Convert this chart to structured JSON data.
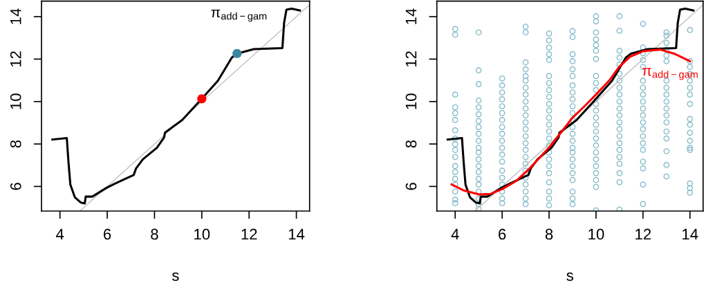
{
  "chart_data": [
    {
      "type": "line",
      "xlabel": "s",
      "xlim": [
        3.22,
        14.56
      ],
      "ylim": [
        4.84,
        14.73
      ],
      "xticks": [
        4,
        6,
        8,
        10,
        12,
        14
      ],
      "yticks": [
        6,
        8,
        10,
        12,
        14
      ],
      "grid": false,
      "legend": false,
      "series": [
        {
          "type": "line",
          "color": "#bebebe",
          "x": [
            4.84,
            14.56
          ],
          "values": [
            4.84,
            14.56
          ]
        },
        {
          "name": "π$_{add−gam}$",
          "color": "#000000",
          "x": [
            3.68,
            4.29,
            4.36,
            4.44,
            4.63,
            4.88,
            5.05,
            5.09,
            5.37,
            5.95,
            6.34,
            7.12,
            7.22,
            7.51,
            8.1,
            8.41,
            8.44,
            9.17,
            10.0,
            10.68,
            11.27,
            11.49,
            12.2,
            13.41,
            13.48,
            13.58,
            13.8,
            14.15
          ],
          "values": [
            8.21,
            8.28,
            7.17,
            6.09,
            5.49,
            5.24,
            5.2,
            5.52,
            5.52,
            5.92,
            6.14,
            6.54,
            6.85,
            7.28,
            7.82,
            8.32,
            8.53,
            9.13,
            10.13,
            10.98,
            12.07,
            12.26,
            12.47,
            12.52,
            13.7,
            14.33,
            14.38,
            14.29
          ]
        },
        {
          "type": "scatter",
          "marker": "circle",
          "colors": [
            "#ff0000",
            "#3a87a0"
          ],
          "x": [
            10.0,
            11.49
          ],
          "values": [
            10.13,
            12.26
          ]
        }
      ]
    },
    {
      "type": "line",
      "xlabel": "s",
      "xlim": [
        3.22,
        14.56
      ],
      "ylim": [
        4.84,
        14.73
      ],
      "xticks": [
        4,
        6,
        8,
        10,
        12,
        14
      ],
      "yticks": [
        6,
        8,
        10,
        12,
        14
      ],
      "grid": false,
      "legend": false,
      "series": [
        {
          "type": "line",
          "color": "#bebebe",
          "x": [
            4.84,
            14.56
          ],
          "values": [
            4.84,
            14.56
          ]
        },
        {
          "type": "scatter",
          "marker": "circle",
          "color": "#86bccb",
          "x": [
            4,
            4,
            4,
            4,
            4,
            4,
            4,
            4,
            4,
            4,
            4,
            4,
            4,
            4,
            4,
            4,
            4,
            4,
            5,
            5,
            5,
            5,
            5,
            5,
            5,
            5,
            5,
            5,
            5,
            5,
            5,
            5,
            5,
            5,
            5,
            5,
            5,
            5,
            5,
            6,
            6,
            6,
            6,
            6,
            6,
            6,
            6,
            6,
            6,
            6,
            6,
            6,
            6,
            6,
            6,
            6,
            6,
            6,
            7,
            7,
            7,
            7,
            7,
            7,
            7,
            7,
            7,
            7,
            7,
            7,
            7,
            7,
            7,
            7,
            7,
            7,
            7,
            7,
            7,
            7,
            7,
            7,
            8,
            8,
            8,
            8,
            8,
            8,
            8,
            8,
            8,
            8,
            8,
            8,
            8,
            8,
            8,
            8,
            8,
            8,
            8,
            8,
            8,
            8,
            8,
            8,
            9,
            9,
            9,
            9,
            9,
            9,
            9,
            9,
            9,
            9,
            9,
            9,
            9,
            9,
            9,
            9,
            9,
            9,
            9,
            9,
            9,
            9,
            9,
            9,
            10,
            10,
            10,
            10,
            10,
            10,
            10,
            10,
            10,
            10,
            10,
            10,
            10,
            10,
            10,
            10,
            10,
            10,
            10,
            10,
            10,
            10,
            10,
            10,
            10,
            11,
            11,
            11,
            11,
            11,
            11,
            11,
            11,
            11,
            11,
            11,
            11,
            11,
            11,
            11,
            11,
            11,
            11,
            11,
            11,
            11,
            11,
            12,
            12,
            12,
            12,
            12,
            12,
            12,
            12,
            12,
            12,
            12,
            12,
            12,
            12,
            12,
            12,
            12,
            12,
            12,
            12,
            13,
            13,
            13,
            13,
            13,
            13,
            13,
            13,
            13,
            13,
            13,
            13,
            13,
            13,
            13,
            13,
            13,
            13,
            14,
            14,
            14,
            14,
            14,
            14,
            14,
            14,
            14,
            14,
            14,
            14,
            14,
            14,
            14,
            14,
            14
          ],
          "values": [
            13.42,
            13.15,
            10.33,
            9.73,
            9.46,
            9.13,
            8.64,
            8.26,
            7.99,
            7.72,
            7.39,
            6.96,
            6.68,
            6.36,
            6.09,
            5.76,
            5.38,
            5.21,
            13.26,
            11.47,
            10.82,
            10.05,
            9.73,
            9.4,
            9.08,
            8.8,
            8.48,
            8.15,
            7.82,
            7.61,
            7.28,
            6.96,
            6.68,
            6.36,
            6.09,
            5.76,
            5.43,
            5.16,
            4.95,
            11.09,
            10.76,
            10.43,
            10.11,
            9.78,
            9.46,
            9.13,
            8.8,
            8.48,
            8.15,
            7.82,
            7.5,
            7.17,
            6.74,
            6.41,
            6.09,
            5.76,
            5.43,
            5.21,
            13.53,
            13.26,
            11.85,
            11.52,
            11.2,
            10.98,
            10.65,
            10.33,
            10.0,
            9.67,
            9.35,
            9.02,
            8.7,
            8.37,
            8.04,
            7.72,
            7.39,
            7.07,
            6.74,
            6.41,
            6.09,
            5.76,
            5.43,
            5.16,
            13.21,
            12.88,
            12.55,
            12.23,
            11.96,
            11.2,
            10.87,
            10.54,
            10.22,
            9.89,
            9.57,
            9.24,
            8.91,
            8.59,
            8.26,
            7.93,
            7.61,
            7.28,
            6.96,
            6.63,
            6.2,
            5.76,
            5.43,
            5.11,
            13.32,
            13.04,
            12.23,
            11.9,
            11.52,
            11.2,
            10.76,
            10.43,
            10.11,
            9.78,
            9.46,
            9.13,
            8.8,
            8.48,
            8.15,
            7.82,
            7.61,
            7.28,
            6.96,
            6.63,
            6.3,
            5.76,
            5.43,
            5.16,
            14.02,
            13.78,
            13.26,
            12.93,
            12.66,
            12.39,
            12.01,
            11.2,
            10.87,
            10.54,
            10.22,
            9.89,
            9.57,
            9.24,
            8.91,
            8.59,
            8.26,
            7.93,
            7.61,
            7.28,
            6.96,
            6.63,
            6.3,
            5.98,
            4.87,
            14.02,
            13.34,
            12.39,
            12.07,
            11.74,
            11.3,
            10.98,
            10.65,
            10.33,
            10.0,
            9.67,
            9.35,
            9.02,
            8.7,
            8.37,
            8.04,
            7.72,
            7.39,
            7.07,
            6.63,
            6.2,
            4.91,
            13.66,
            12.55,
            12.28,
            11.96,
            11.63,
            10.98,
            10.65,
            10.33,
            10.0,
            9.67,
            9.35,
            9.02,
            8.7,
            8.37,
            8.04,
            7.72,
            7.17,
            6.85,
            6.09,
            5.17,
            13.26,
            13.1,
            12.77,
            12.45,
            12.17,
            11.9,
            10.98,
            10.65,
            10.33,
            10.0,
            9.67,
            9.35,
            9.02,
            8.59,
            8.26,
            7.66,
            7.01,
            6.47,
            13.37,
            11.9,
            11.63,
            11.3,
            10.98,
            10.65,
            10.33,
            9.89,
            9.18,
            8.91,
            8.53,
            8.15,
            7.82,
            7.72,
            6.14,
            5.92,
            5.71
          ]
        },
        {
          "type": "line",
          "color": "#000000",
          "x": [
            3.68,
            4.29,
            4.36,
            4.44,
            4.63,
            4.88,
            5.05,
            5.09,
            5.37,
            5.95,
            6.34,
            7.12,
            7.22,
            7.51,
            8.1,
            8.41,
            8.44,
            9.17,
            10.0,
            10.68,
            11.27,
            11.49,
            12.2,
            13.41,
            13.48,
            13.58,
            13.8,
            14.15
          ],
          "values": [
            8.21,
            8.28,
            7.17,
            6.09,
            5.49,
            5.24,
            5.2,
            5.52,
            5.52,
            5.92,
            6.14,
            6.54,
            6.85,
            7.28,
            7.82,
            8.32,
            8.53,
            9.13,
            10.13,
            10.98,
            12.07,
            12.26,
            12.47,
            12.52,
            13.7,
            14.33,
            14.38,
            14.29
          ]
        },
        {
          "name": "π$_{add−gam}$",
          "color": "#ff0000",
          "x": [
            3.85,
            4.34,
            5.02,
            5.51,
            6.0,
            6.59,
            7.17,
            8.0,
            8.54,
            9.0,
            9.51,
            10.0,
            10.59,
            10.98,
            11.46,
            12.0,
            12.73,
            13.32,
            14.0
          ],
          "values": [
            6.09,
            5.82,
            5.62,
            5.65,
            5.87,
            6.25,
            6.85,
            7.83,
            8.59,
            9.24,
            9.78,
            10.33,
            11.03,
            11.63,
            12.12,
            12.37,
            12.45,
            12.26,
            11.9
          ]
        }
      ]
    }
  ]
}
